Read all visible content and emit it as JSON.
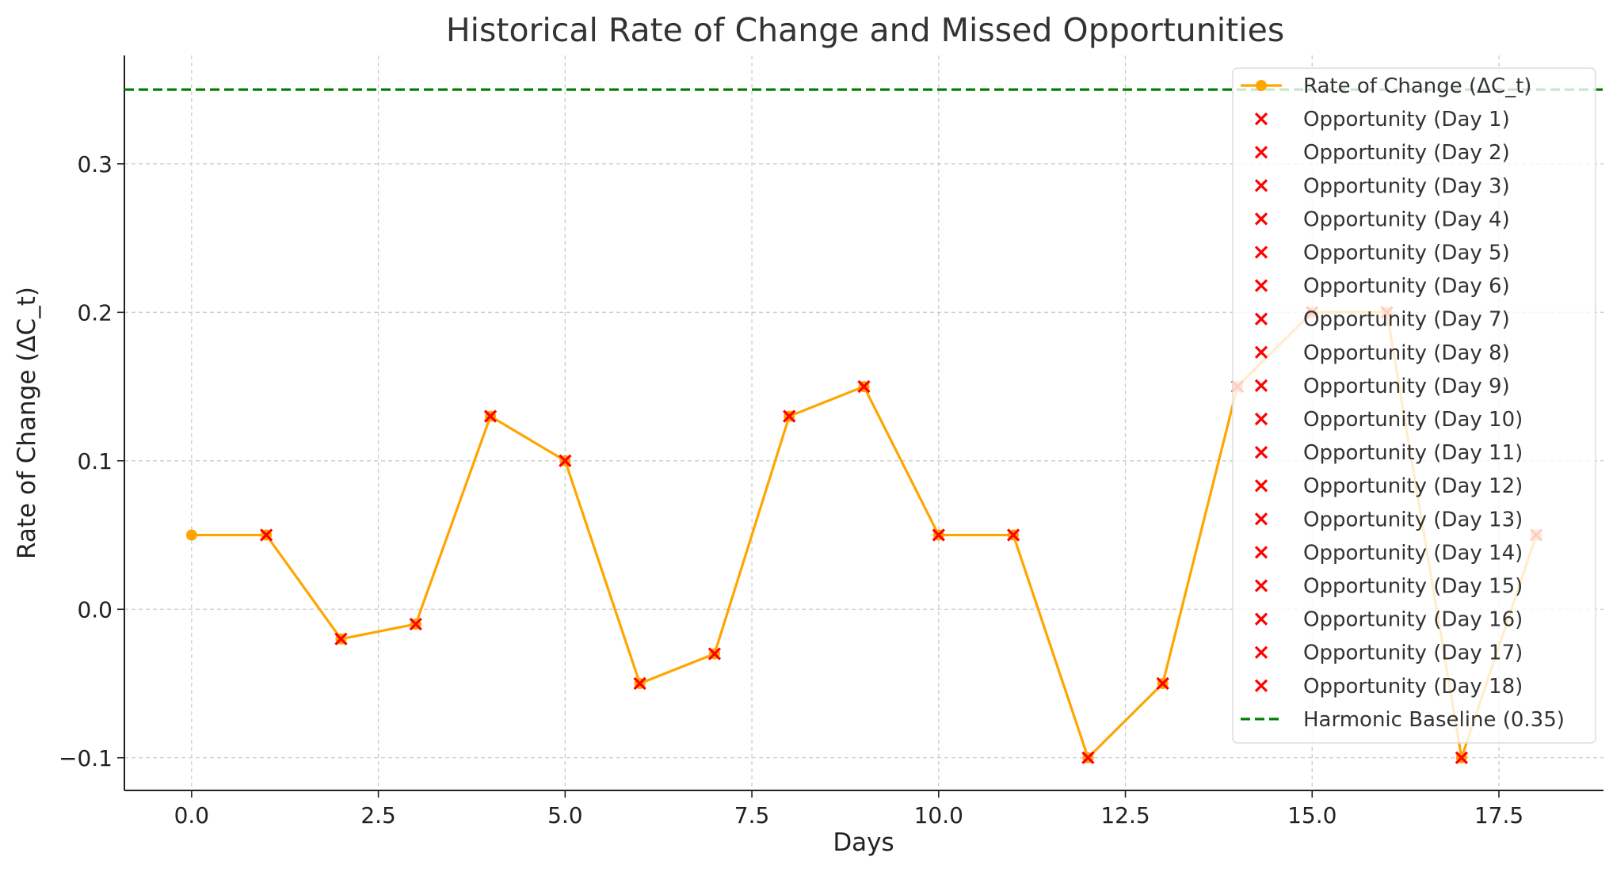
{
  "chart_data": {
    "type": "line",
    "title": "Historical Rate of Change and Missed Opportunities",
    "xlabel": "Days",
    "ylabel": "Rate of Change (ΔC_t)",
    "xlim": [
      -0.9,
      18.9
    ],
    "ylim": [
      -0.122,
      0.373
    ],
    "x_ticks": [
      0.0,
      2.5,
      5.0,
      7.5,
      10.0,
      12.5,
      15.0,
      17.5
    ],
    "x_tick_labels": [
      "0.0",
      "2.5",
      "5.0",
      "7.5",
      "10.0",
      "12.5",
      "15.0",
      "17.5"
    ],
    "y_ticks": [
      -0.1,
      0.0,
      0.1,
      0.2,
      0.3
    ],
    "y_tick_labels": [
      "−0.1",
      "0.0",
      "0.1",
      "0.2",
      "0.3"
    ],
    "grid": true,
    "legend_position": "top-right",
    "series": [
      {
        "name": "Rate of Change (ΔC_t)",
        "color": "#FFA500",
        "x": [
          0,
          1,
          2,
          3,
          4,
          5,
          6,
          7,
          8,
          9,
          10,
          11,
          12,
          13,
          14,
          15,
          16,
          17,
          18
        ],
        "values": [
          0.05,
          0.05,
          -0.02,
          -0.01,
          0.13,
          0.1,
          -0.05,
          -0.03,
          0.13,
          0.15,
          0.05,
          0.05,
          -0.1,
          -0.05,
          0.15,
          0.2,
          0.2,
          -0.1,
          0.05
        ]
      }
    ],
    "opportunities": [
      {
        "name": "Opportunity (Day 1)",
        "x": 1,
        "y": 0.05
      },
      {
        "name": "Opportunity (Day 2)",
        "x": 2,
        "y": -0.02
      },
      {
        "name": "Opportunity (Day 3)",
        "x": 3,
        "y": -0.01
      },
      {
        "name": "Opportunity (Day 4)",
        "x": 4,
        "y": 0.13
      },
      {
        "name": "Opportunity (Day 5)",
        "x": 5,
        "y": 0.1
      },
      {
        "name": "Opportunity (Day 6)",
        "x": 6,
        "y": -0.05
      },
      {
        "name": "Opportunity (Day 7)",
        "x": 7,
        "y": -0.03
      },
      {
        "name": "Opportunity (Day 8)",
        "x": 8,
        "y": 0.13
      },
      {
        "name": "Opportunity (Day 9)",
        "x": 9,
        "y": 0.15
      },
      {
        "name": "Opportunity (Day 10)",
        "x": 10,
        "y": 0.05
      },
      {
        "name": "Opportunity (Day 11)",
        "x": 11,
        "y": 0.05
      },
      {
        "name": "Opportunity (Day 12)",
        "x": 12,
        "y": -0.1
      },
      {
        "name": "Opportunity (Day 13)",
        "x": 13,
        "y": -0.05
      },
      {
        "name": "Opportunity (Day 14)",
        "x": 14,
        "y": 0.15
      },
      {
        "name": "Opportunity (Day 15)",
        "x": 15,
        "y": 0.2
      },
      {
        "name": "Opportunity (Day 16)",
        "x": 16,
        "y": 0.2
      },
      {
        "name": "Opportunity (Day 17)",
        "x": 17,
        "y": -0.1
      },
      {
        "name": "Opportunity (Day 18)",
        "x": 18,
        "y": 0.05
      }
    ],
    "opportunity_color": "#FF0000",
    "baseline": {
      "name": "Harmonic Baseline (0.35)",
      "y": 0.35,
      "color": "#008000"
    }
  }
}
